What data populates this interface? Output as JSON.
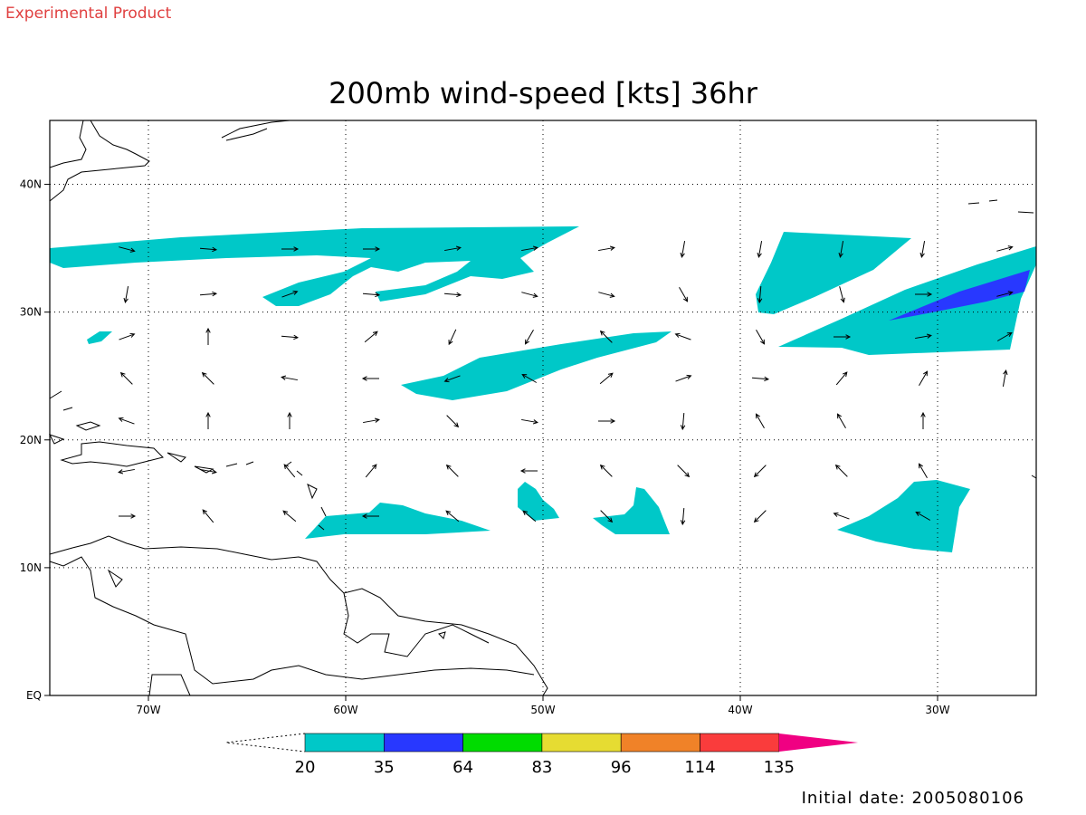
{
  "header": {
    "label": "Experimental Product"
  },
  "title": "200mb wind-speed [kts] 36hr",
  "map": {
    "lon_range": [
      -75,
      -25
    ],
    "lat_range": [
      0,
      45
    ],
    "lon_ticks": [
      {
        "value": -70,
        "label": "70W"
      },
      {
        "value": -60,
        "label": "60W"
      },
      {
        "value": -50,
        "label": "50W"
      },
      {
        "value": -40,
        "label": "40W"
      },
      {
        "value": -30,
        "label": "30W"
      }
    ],
    "lat_ticks": [
      {
        "value": 0,
        "label": "EQ"
      },
      {
        "value": 10,
        "label": "10N"
      },
      {
        "value": 20,
        "label": "20N"
      },
      {
        "value": 30,
        "label": "30N"
      },
      {
        "value": 40,
        "label": "40N"
      }
    ]
  },
  "colorbar": {
    "levels": [
      20,
      35,
      64,
      83,
      96,
      114,
      135
    ],
    "colors": [
      "#00c8c8",
      "#2838ff",
      "#00dc00",
      "#e6dc32",
      "#f08228",
      "#fa3c3c",
      "#f00082"
    ]
  },
  "footer": {
    "initial_date": "Initial date: 2005080106"
  }
}
